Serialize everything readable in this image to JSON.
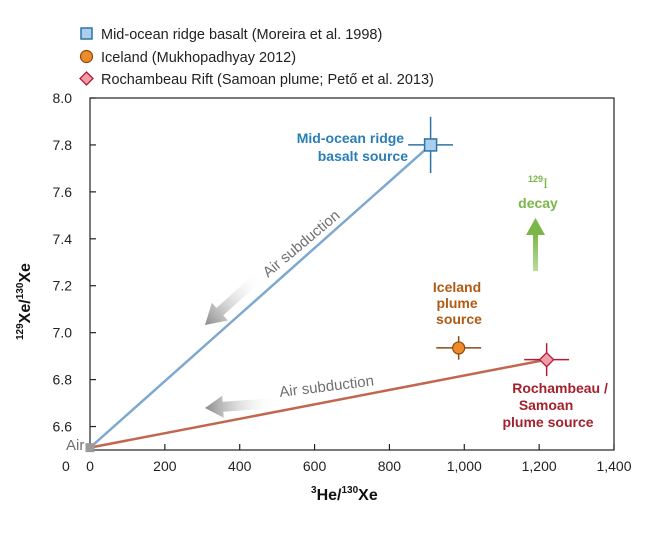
{
  "chart_data": {
    "type": "scatter",
    "xlabel": {
      "sup": "3",
      "base1": "He/",
      "sup2": "130",
      "base2": "Xe"
    },
    "ylabel": {
      "sup": "129",
      "base1": "Xe/",
      "sup2": "130",
      "base2": "Xe"
    },
    "xlim": [
      0,
      1400
    ],
    "ylim": [
      6.5,
      8.0
    ],
    "x_ticks": [
      0,
      200,
      400,
      600,
      800,
      1000,
      1200,
      1400
    ],
    "x_tick_labels": [
      "0",
      "200",
      "400",
      "600",
      "800",
      "1,000",
      "1,200",
      "1,400"
    ],
    "y_ticks": [
      6.6,
      6.8,
      7.0,
      7.2,
      7.4,
      7.6,
      7.8,
      8.0
    ],
    "y_tick_labels": [
      "6.6",
      "6.8",
      "7.0",
      "7.2",
      "7.4",
      "7.6",
      "7.8",
      "8.0"
    ],
    "y_origin_label": "0",
    "grid": false,
    "legend_position": "top-left",
    "series": [
      {
        "name": "Mid-ocean ridge basalt (Moreira et al. 1998)",
        "marker": "square",
        "color": "#a9cfee",
        "edge": "#2f73a6",
        "points": [
          {
            "x": 910,
            "y": 7.8,
            "xerr": 60,
            "yerr": 0.12
          }
        ]
      },
      {
        "name": "Iceland (Mukhopadhyay 2012)",
        "marker": "circle",
        "color": "#ef8a2a",
        "edge": "#8a4a10",
        "points": [
          {
            "x": 985,
            "y": 6.935,
            "xerr": 60,
            "yerr": 0.05
          }
        ]
      },
      {
        "name": "Rochambeau Rift (Samoan plume; Pető et al. 2013)",
        "marker": "diamond",
        "color": "#f29cab",
        "edge": "#b01c37",
        "points": [
          {
            "x": 1220,
            "y": 6.885,
            "xerr": 60,
            "yerr": 0.07
          }
        ]
      }
    ],
    "lines": [
      {
        "from": [
          0,
          6.51
        ],
        "to": [
          910,
          7.8
        ],
        "color": "#7fa8cf"
      },
      {
        "from": [
          0,
          6.51
        ],
        "to": [
          1220,
          6.885
        ],
        "color": "#c2674f"
      }
    ],
    "air_point": {
      "x": 0,
      "y": 6.51,
      "label": "Air"
    },
    "annotations": [
      {
        "lines": [
          "Mid-ocean ridge",
          "basalt source"
        ],
        "color": "#2a7eb6"
      },
      {
        "lines": [
          "Iceland",
          "plume",
          "source"
        ],
        "color": "#b05a14"
      },
      {
        "lines": [
          "Rochambeau /",
          "Samoan",
          "plume source"
        ],
        "color": "#a3212d"
      },
      {
        "lines": [
          "decay"
        ],
        "sup": "129",
        "element": "I",
        "color": "#7ab648"
      }
    ],
    "arrow_labels": [
      "Air subduction",
      "Air subduction"
    ]
  }
}
